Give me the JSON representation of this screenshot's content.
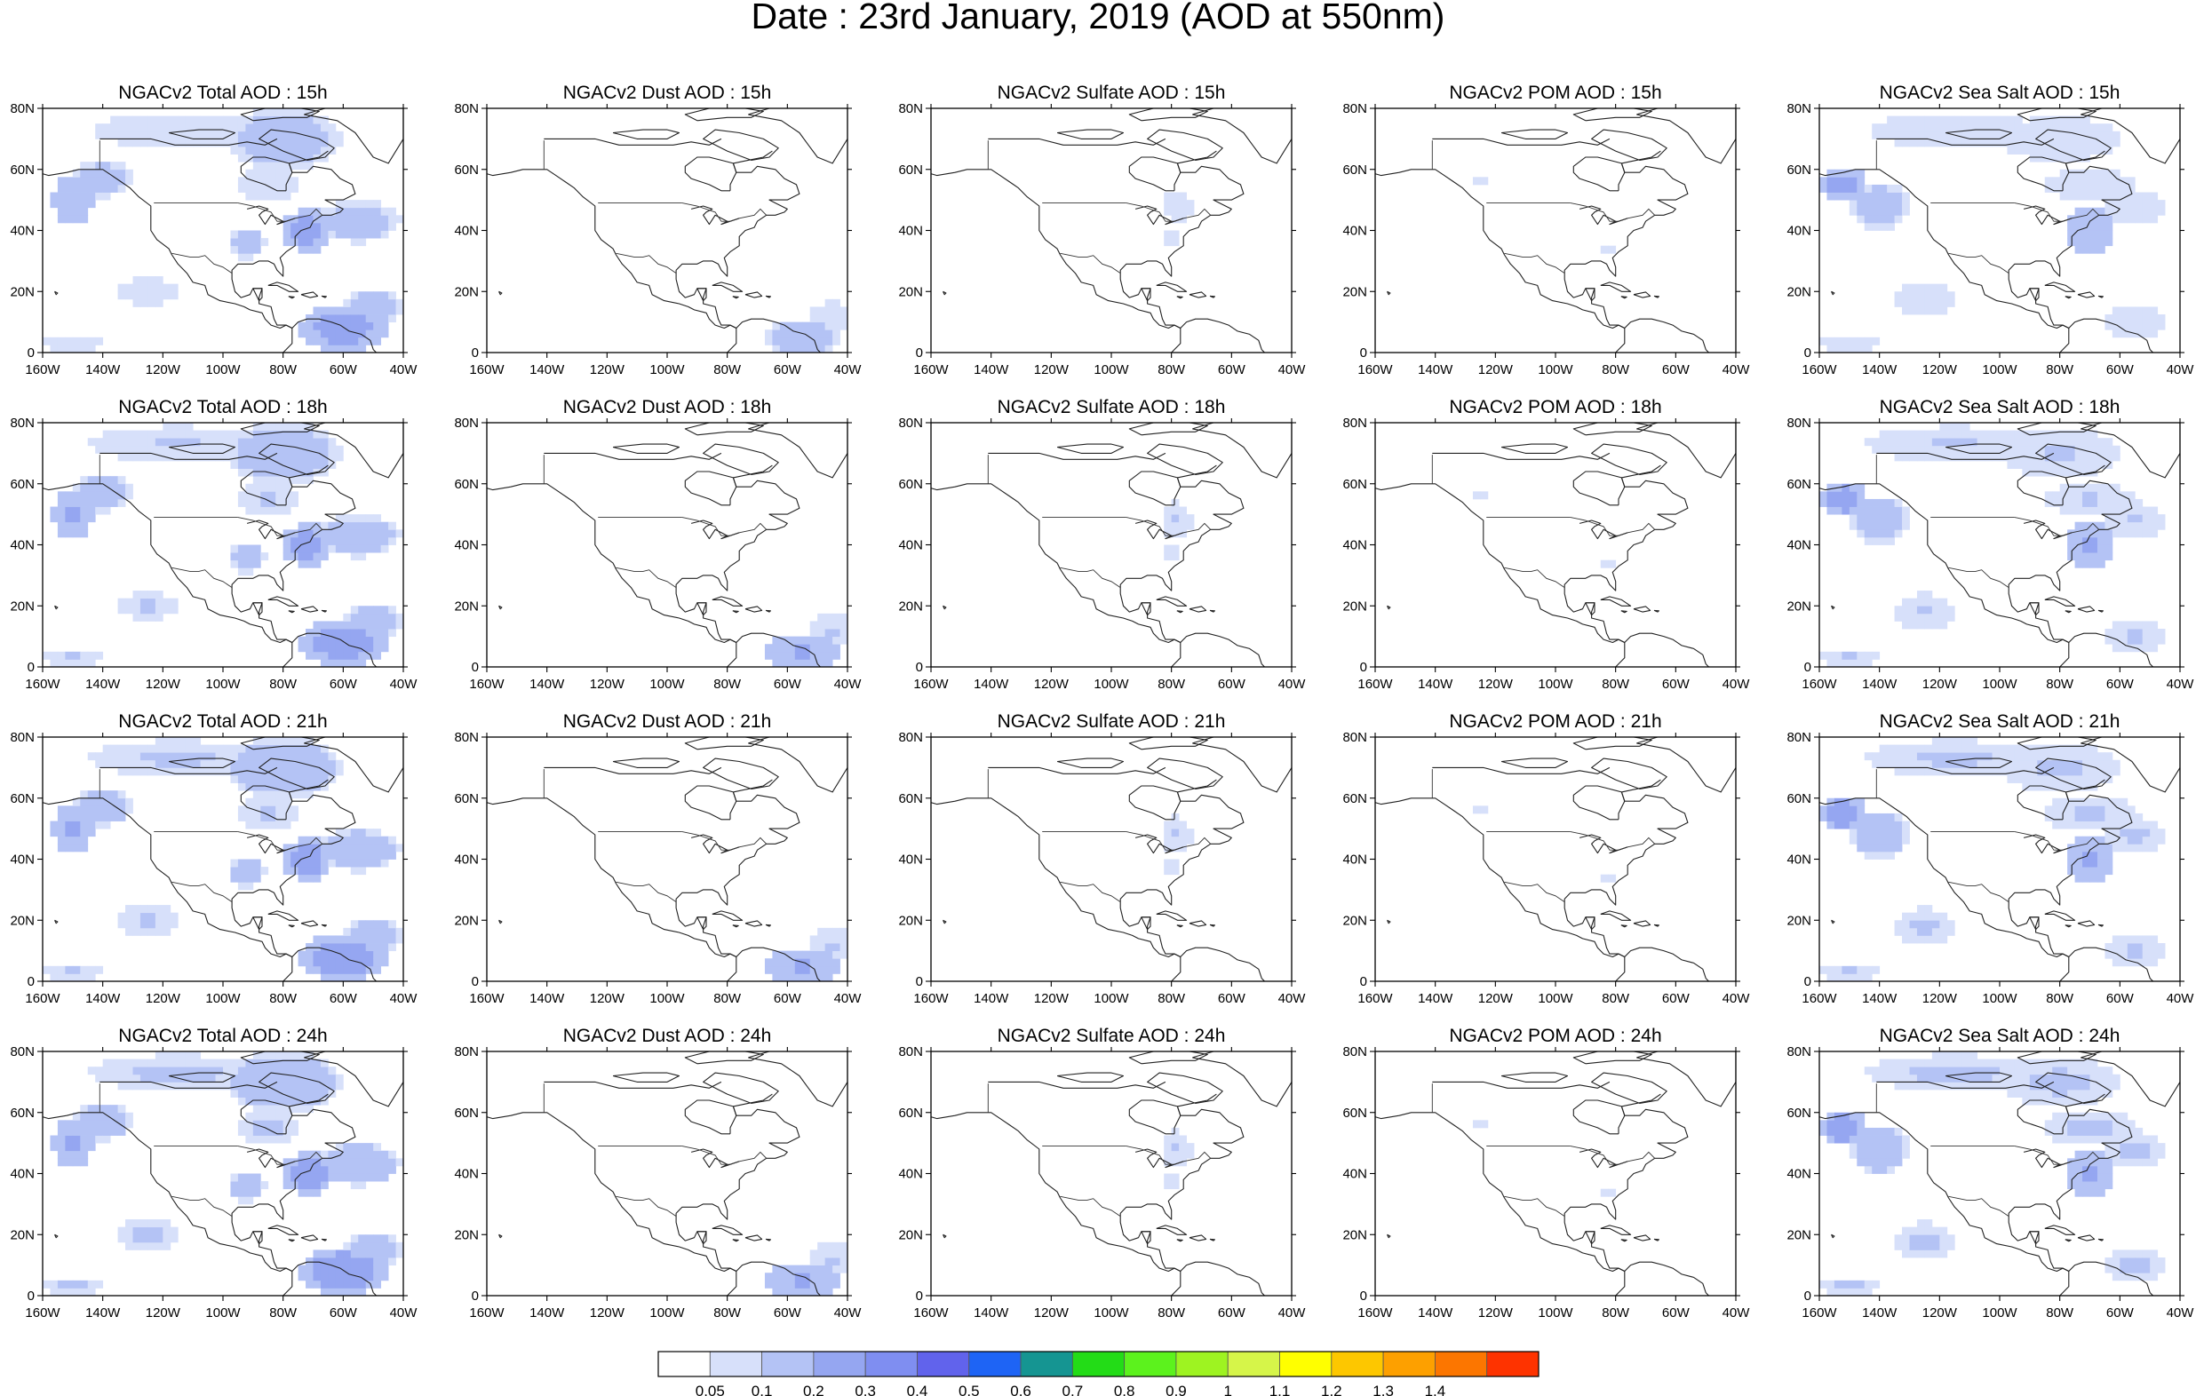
{
  "title": "Date : 23rd January, 2019 (AOD at 550nm)",
  "chart_data": {
    "type": "heatmap",
    "title": "Date : 23rd January, 2019 (AOD at 550nm)",
    "layout": "4 rows (forecast hour) x 5 columns (aerosol component)",
    "x_ticks": [
      "160W",
      "140W",
      "120W",
      "100W",
      "80W",
      "60W",
      "40W"
    ],
    "y_ticks": [
      "0",
      "20N",
      "40N",
      "60N",
      "80N"
    ],
    "xlim": [
      -160,
      -40
    ],
    "ylim": [
      0,
      80
    ],
    "grid": false,
    "colorbar": {
      "placement": "bottom",
      "labels": [
        "0.05",
        "0.1",
        "0.2",
        "0.3",
        "0.4",
        "0.5",
        "0.6",
        "0.7",
        "0.8",
        "0.9",
        "1",
        "1.1",
        "1.2",
        "1.3",
        "1.4"
      ],
      "colors": [
        "#ffffff",
        "#d7e0fa",
        "#b4c3f5",
        "#95a6f1",
        "#7f8ef1",
        "#6163ec",
        "#1e64f5",
        "#159592",
        "#23dc17",
        "#5cf21d",
        "#9ef321",
        "#d6f549",
        "#ffff00",
        "#fdc700",
        "#fda000",
        "#fc7600",
        "#fe3300"
      ]
    },
    "panels": [
      {
        "title": "NGACv2 Total AOD : 15h",
        "component": "total",
        "intensity": 1.0
      },
      {
        "title": "NGACv2 Dust AOD : 15h",
        "component": "dust",
        "intensity": 1.0
      },
      {
        "title": "NGACv2 Sulfate AOD : 15h",
        "component": "sulfate",
        "intensity": 1.0
      },
      {
        "title": "NGACv2 POM AOD : 15h",
        "component": "pom",
        "intensity": 1.0
      },
      {
        "title": "NGACv2 Sea Salt AOD : 15h",
        "component": "seasalt",
        "intensity": 1.0
      },
      {
        "title": "NGACv2 Total AOD : 18h",
        "component": "total",
        "intensity": 1.05
      },
      {
        "title": "NGACv2 Dust AOD : 18h",
        "component": "dust",
        "intensity": 1.05
      },
      {
        "title": "NGACv2 Sulfate AOD : 18h",
        "component": "sulfate",
        "intensity": 1.05
      },
      {
        "title": "NGACv2 POM AOD : 18h",
        "component": "pom",
        "intensity": 1.0
      },
      {
        "title": "NGACv2 Sea Salt AOD : 18h",
        "component": "seasalt",
        "intensity": 1.05
      },
      {
        "title": "NGACv2 Total AOD : 21h",
        "component": "total",
        "intensity": 1.1
      },
      {
        "title": "NGACv2 Dust AOD : 21h",
        "component": "dust",
        "intensity": 1.05
      },
      {
        "title": "NGACv2 Sulfate AOD : 21h",
        "component": "sulfate",
        "intensity": 1.05
      },
      {
        "title": "NGACv2 POM AOD : 21h",
        "component": "pom",
        "intensity": 1.0
      },
      {
        "title": "NGACv2 Sea Salt AOD : 21h",
        "component": "seasalt",
        "intensity": 1.1
      },
      {
        "title": "NGACv2 Total AOD : 24h",
        "component": "total",
        "intensity": 1.15
      },
      {
        "title": "NGACv2 Dust AOD : 24h",
        "component": "dust",
        "intensity": 1.05
      },
      {
        "title": "NGACv2 Sulfate AOD : 24h",
        "component": "sulfate",
        "intensity": 1.05
      },
      {
        "title": "NGACv2 POM AOD : 24h",
        "component": "pom",
        "intensity": 1.0
      },
      {
        "title": "NGACv2 Sea Salt  AOD : 24h",
        "component": "seasalt",
        "intensity": 1.15
      }
    ],
    "aod_features": {
      "total": [
        {
          "lon": -150,
          "lat": 50,
          "value": 0.2,
          "rlon": 7,
          "rlat": 8
        },
        {
          "lon": -140,
          "lat": 57,
          "value": 0.15,
          "rlon": 10,
          "rlat": 6
        },
        {
          "lon": -115,
          "lat": 73,
          "value": 0.1,
          "rlon": 30,
          "rlat": 6
        },
        {
          "lon": -80,
          "lat": 70,
          "value": 0.15,
          "rlon": 20,
          "rlat": 10
        },
        {
          "lon": -85,
          "lat": 55,
          "value": 0.1,
          "rlon": 10,
          "rlat": 6
        },
        {
          "lon": -72,
          "lat": 40,
          "value": 0.25,
          "rlon": 8,
          "rlat": 7
        },
        {
          "lon": -55,
          "lat": 43,
          "value": 0.15,
          "rlon": 14,
          "rlat": 7
        },
        {
          "lon": -92,
          "lat": 36,
          "value": 0.15,
          "rlon": 6,
          "rlat": 5
        },
        {
          "lon": -125,
          "lat": 20,
          "value": 0.1,
          "rlon": 10,
          "rlat": 5
        },
        {
          "lon": -60,
          "lat": 8,
          "value": 0.25,
          "rlon": 15,
          "rlat": 8
        },
        {
          "lon": -50,
          "lat": 15,
          "value": 0.15,
          "rlon": 10,
          "rlat": 6
        },
        {
          "lon": -150,
          "lat": 3,
          "value": 0.1,
          "rlon": 10,
          "rlat": 3
        }
      ],
      "dust": [
        {
          "lon": -55,
          "lat": 5,
          "value": 0.2,
          "rlon": 12,
          "rlat": 6
        },
        {
          "lon": -45,
          "lat": 12,
          "value": 0.1,
          "rlon": 8,
          "rlat": 5
        }
      ],
      "sulfate": [
        {
          "lon": -78,
          "lat": 48,
          "value": 0.1,
          "rlon": 5,
          "rlat": 6
        },
        {
          "lon": -80,
          "lat": 38,
          "value": 0.1,
          "rlon": 3,
          "rlat": 3
        }
      ],
      "pom": [
        {
          "lon": -125,
          "lat": 57,
          "value": 0.1,
          "rlon": 2,
          "rlat": 2
        },
        {
          "lon": -82,
          "lat": 34,
          "value": 0.1,
          "rlon": 2,
          "rlat": 2
        }
      ],
      "seasalt": [
        {
          "lon": -152,
          "lat": 55,
          "value": 0.25,
          "rlon": 8,
          "rlat": 6
        },
        {
          "lon": -140,
          "lat": 48,
          "value": 0.15,
          "rlon": 10,
          "rlat": 8
        },
        {
          "lon": -115,
          "lat": 73,
          "value": 0.1,
          "rlon": 30,
          "rlat": 6
        },
        {
          "lon": -80,
          "lat": 70,
          "value": 0.1,
          "rlon": 20,
          "rlat": 8
        },
        {
          "lon": -70,
          "lat": 55,
          "value": 0.1,
          "rlon": 15,
          "rlat": 6
        },
        {
          "lon": -70,
          "lat": 40,
          "value": 0.2,
          "rlon": 8,
          "rlat": 8
        },
        {
          "lon": -55,
          "lat": 48,
          "value": 0.1,
          "rlon": 10,
          "rlat": 6
        },
        {
          "lon": -125,
          "lat": 18,
          "value": 0.1,
          "rlon": 10,
          "rlat": 6
        },
        {
          "lon": -55,
          "lat": 10,
          "value": 0.1,
          "rlon": 10,
          "rlat": 6
        },
        {
          "lon": -150,
          "lat": 3,
          "value": 0.1,
          "rlon": 10,
          "rlat": 3
        }
      ]
    }
  }
}
